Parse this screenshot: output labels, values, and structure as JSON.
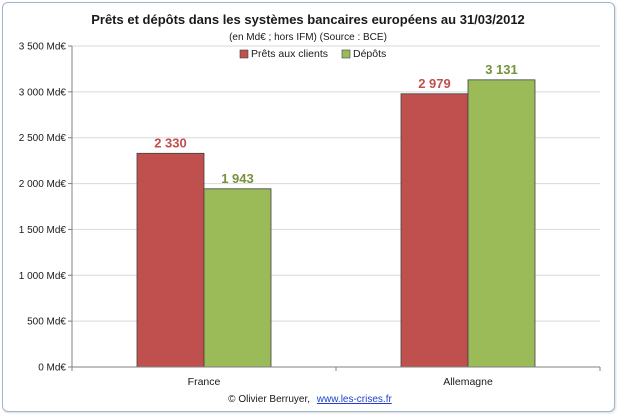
{
  "chart_data": {
    "type": "bar",
    "title": "Prêts et dépôts dans les systèmes bancaires européens au 31/03/2012",
    "subtitle": "(en Md€ ; hors IFM) (Source : BCE)",
    "categories": [
      "France",
      "Allemagne"
    ],
    "series": [
      {
        "name": "Prêts aux clients",
        "values": [
          2330,
          2979
        ],
        "labels": [
          "2 330",
          "2 979"
        ],
        "color": "#c0504d",
        "label_color": "#c0504d"
      },
      {
        "name": "Dépôts",
        "values": [
          1943,
          3131
        ],
        "labels": [
          "1 943",
          "3 131"
        ],
        "color": "#9bbb59",
        "label_color": "#76923c"
      }
    ],
    "ylim": [
      0,
      3500
    ],
    "yticks": [
      0,
      500,
      1000,
      1500,
      2000,
      2500,
      3000,
      3500
    ],
    "ytick_labels": [
      "0 Md€",
      "500 Md€",
      "1 000 Md€",
      "1 500 Md€",
      "2 000 Md€",
      "2 500 Md€",
      "3 000 Md€",
      "3 500 Md€"
    ],
    "grid": true,
    "legend_position": "top-center"
  },
  "credit": {
    "prefix": "© Olivier Berruyer,",
    "link": "www.les-crises.fr"
  }
}
